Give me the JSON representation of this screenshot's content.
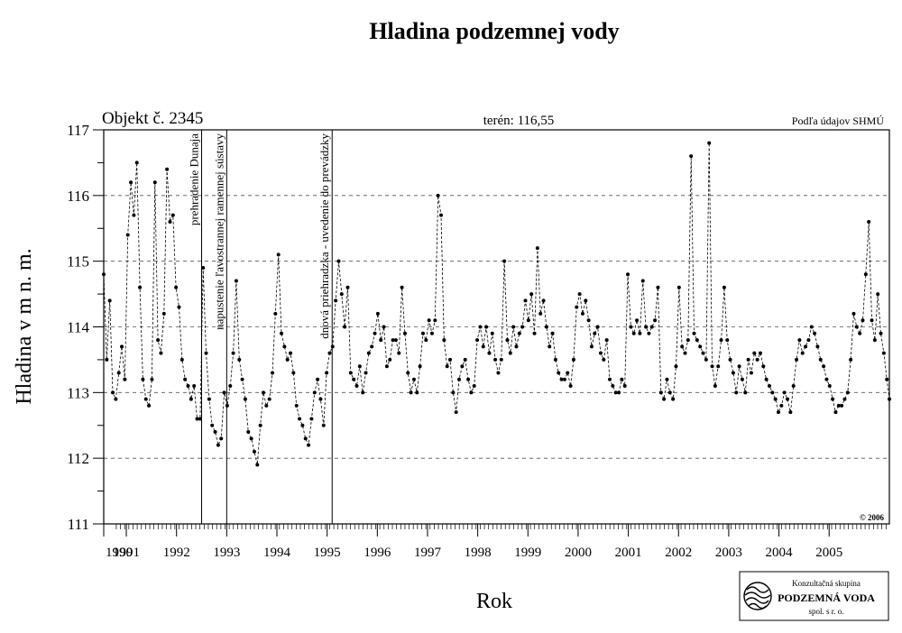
{
  "chart_data": {
    "type": "line",
    "title": "Hladina podzemnej vody",
    "object_label": "Objekt č. 2345",
    "terrain_label": "terén: 116,55",
    "source_label": "Podľa údajov SHMÚ",
    "copyright": "© 2006",
    "xlabel": "Rok",
    "ylabel": "Hladina v m n. m.",
    "xlim": [
      1990.2,
      2005.85
    ],
    "ylim": [
      111,
      117
    ],
    "y_ticks": [
      "111",
      "112",
      "113",
      "114",
      "115",
      "116",
      "117"
    ],
    "x_tick_labels": [
      {
        "x": 1990.2,
        "label": "1990"
      },
      {
        "x": 1990.65,
        "label": "1991"
      },
      {
        "x": 1991.65,
        "label": "1992"
      },
      {
        "x": 1992.65,
        "label": "1993"
      },
      {
        "x": 1993.65,
        "label": "1994"
      },
      {
        "x": 1994.65,
        "label": "1995"
      },
      {
        "x": 1995.65,
        "label": "1996"
      },
      {
        "x": 1996.65,
        "label": "1997"
      },
      {
        "x": 1997.65,
        "label": "1998"
      },
      {
        "x": 1998.65,
        "label": "1999"
      },
      {
        "x": 1999.65,
        "label": "2000"
      },
      {
        "x": 2000.65,
        "label": "2001"
      },
      {
        "x": 2001.65,
        "label": "2002"
      },
      {
        "x": 2002.65,
        "label": "2003"
      },
      {
        "x": 2003.65,
        "label": "2004"
      },
      {
        "x": 2004.65,
        "label": "2005"
      }
    ],
    "grid": "horizontal dashed",
    "event_lines": [
      {
        "x": 1992.15,
        "label": "prehradenie Dunaja"
      },
      {
        "x": 1992.65,
        "label": "napustenie ľavostrannej ramennej sústavy"
      },
      {
        "x": 1994.75,
        "label": "dnová priehradzka - uvedenie do prevádzky"
      }
    ],
    "series": [
      {
        "x": [
          1990.2,
          1990.26,
          1990.32,
          1990.38,
          1990.44,
          1990.5,
          1990.56,
          1990.62,
          1990.68,
          1990.74,
          1990.8,
          1990.86,
          1990.92,
          1990.98,
          1991.04,
          1991.1,
          1991.16,
          1991.22,
          1991.28,
          1991.34,
          1991.4,
          1991.46,
          1991.52,
          1991.58,
          1991.64,
          1991.7,
          1991.76,
          1991.82,
          1991.88,
          1991.94,
          1992.0,
          1992.06,
          1992.12,
          1992.18,
          1992.24,
          1992.3,
          1992.36,
          1992.42,
          1992.48,
          1992.54,
          1992.6,
          1992.66,
          1992.72,
          1992.78,
          1992.84,
          1992.9,
          1992.96,
          1993.02,
          1993.08,
          1993.14,
          1993.2,
          1993.26,
          1993.32,
          1993.38,
          1993.44,
          1993.5,
          1993.56,
          1993.62,
          1993.68,
          1993.74,
          1993.8,
          1993.86,
          1993.92,
          1993.98,
          1994.04,
          1994.1,
          1994.16,
          1994.22,
          1994.28,
          1994.34,
          1994.4,
          1994.46,
          1994.52,
          1994.58,
          1994.64,
          1994.7,
          1994.76,
          1994.82,
          1994.88,
          1994.94,
          1995.0,
          1995.06,
          1995.12,
          1995.18,
          1995.24,
          1995.3,
          1995.36,
          1995.42,
          1995.48,
          1995.54,
          1995.6,
          1995.66,
          1995.72,
          1995.78,
          1995.84,
          1995.9,
          1995.96,
          1996.02,
          1996.08,
          1996.14,
          1996.2,
          1996.26,
          1996.32,
          1996.38,
          1996.44,
          1996.5,
          1996.56,
          1996.62,
          1996.68,
          1996.74,
          1996.8,
          1996.86,
          1996.92,
          1996.98,
          1997.04,
          1997.1,
          1997.16,
          1997.22,
          1997.28,
          1997.34,
          1997.4,
          1997.46,
          1997.52,
          1997.58,
          1997.64,
          1997.7,
          1997.76,
          1997.82,
          1997.88,
          1997.94,
          1998.0,
          1998.06,
          1998.12,
          1998.18,
          1998.24,
          1998.3,
          1998.36,
          1998.42,
          1998.48,
          1998.54,
          1998.6,
          1998.66,
          1998.72,
          1998.78,
          1998.84,
          1998.9,
          1998.96,
          1999.02,
          1999.08,
          1999.14,
          1999.2,
          1999.26,
          1999.32,
          1999.38,
          1999.44,
          1999.5,
          1999.56,
          1999.62,
          1999.68,
          1999.74,
          1999.8,
          1999.86,
          1999.92,
          1999.98,
          2000.04,
          2000.1,
          2000.16,
          2000.22,
          2000.28,
          2000.34,
          2000.4,
          2000.46,
          2000.52,
          2000.58,
          2000.64,
          2000.7,
          2000.76,
          2000.82,
          2000.88,
          2000.94,
          2001.0,
          2001.06,
          2001.12,
          2001.18,
          2001.24,
          2001.3,
          2001.36,
          2001.42,
          2001.48,
          2001.54,
          2001.6,
          2001.66,
          2001.72,
          2001.78,
          2001.84,
          2001.9,
          2001.96,
          2002.02,
          2002.08,
          2002.14,
          2002.2,
          2002.26,
          2002.32,
          2002.38,
          2002.44,
          2002.5,
          2002.56,
          2002.62,
          2002.68,
          2002.74,
          2002.8,
          2002.86,
          2002.92,
          2002.98,
          2003.04,
          2003.1,
          2003.16,
          2003.22,
          2003.28,
          2003.34,
          2003.4,
          2003.46,
          2003.52,
          2003.58,
          2003.64,
          2003.7,
          2003.76,
          2003.82,
          2003.88,
          2003.94,
          2004.0,
          2004.06,
          2004.12,
          2004.18,
          2004.24,
          2004.3,
          2004.36,
          2004.42,
          2004.48,
          2004.54,
          2004.6,
          2004.66,
          2004.72,
          2004.78,
          2004.84,
          2004.9,
          2004.96,
          2005.02,
          2005.08,
          2005.14,
          2005.2,
          2005.26,
          2005.32,
          2005.38,
          2005.44,
          2005.5,
          2005.56,
          2005.62,
          2005.68,
          2005.74,
          2005.8,
          2005.85
        ],
        "y": [
          114.8,
          113.5,
          114.4,
          113.0,
          112.9,
          113.3,
          113.7,
          113.2,
          115.4,
          116.2,
          115.7,
          116.5,
          114.6,
          113.2,
          112.9,
          112.8,
          113.2,
          116.2,
          113.8,
          113.6,
          114.2,
          116.4,
          115.6,
          115.7,
          114.6,
          114.3,
          113.5,
          113.2,
          113.1,
          112.9,
          113.1,
          112.6,
          112.6,
          114.9,
          113.6,
          112.9,
          112.5,
          112.4,
          112.2,
          112.3,
          113.0,
          112.8,
          113.1,
          113.6,
          114.7,
          113.5,
          113.2,
          112.9,
          112.4,
          112.3,
          112.1,
          111.9,
          112.5,
          113.0,
          112.8,
          112.9,
          113.3,
          114.2,
          115.1,
          113.9,
          113.7,
          113.5,
          113.6,
          113.3,
          112.8,
          112.6,
          112.5,
          112.3,
          112.2,
          112.6,
          113.0,
          113.2,
          112.9,
          112.5,
          113.3,
          113.6,
          113.7,
          114.4,
          115.0,
          114.5,
          114.0,
          114.6,
          113.3,
          113.2,
          113.1,
          113.4,
          113.0,
          113.3,
          113.6,
          113.7,
          113.9,
          114.2,
          113.8,
          114.0,
          113.4,
          113.5,
          113.8,
          113.8,
          113.6,
          114.6,
          113.9,
          113.3,
          113.0,
          113.2,
          113.0,
          113.4,
          113.9,
          113.8,
          114.1,
          113.9,
          114.1,
          116.0,
          115.7,
          113.8,
          113.4,
          113.5,
          113.0,
          112.7,
          113.2,
          113.4,
          113.5,
          113.2,
          113.0,
          113.1,
          113.8,
          114.0,
          113.7,
          114.0,
          113.6,
          113.9,
          113.5,
          113.3,
          113.5,
          115.0,
          113.8,
          113.6,
          114.0,
          113.7,
          113.9,
          114.0,
          114.4,
          114.1,
          114.5,
          113.9,
          115.2,
          114.2,
          114.4,
          114.0,
          113.7,
          113.9,
          113.5,
          113.3,
          113.2,
          113.2,
          113.3,
          113.1,
          113.5,
          114.3,
          114.5,
          114.2,
          114.4,
          114.1,
          113.7,
          113.9,
          114.0,
          113.6,
          113.5,
          113.8,
          113.2,
          113.1,
          113.0,
          113.0,
          113.2,
          113.1,
          114.8,
          114.0,
          113.9,
          114.1,
          113.9,
          114.7,
          114.0,
          113.9,
          114.0,
          114.1,
          114.6,
          113.0,
          112.9,
          113.2,
          113.0,
          112.9,
          113.4,
          114.6,
          113.7,
          113.6,
          113.8,
          116.6,
          113.9,
          113.8,
          113.7,
          113.6,
          113.5,
          116.8,
          113.4,
          113.1,
          113.4,
          113.8,
          114.6,
          113.8,
          113.5,
          113.3,
          113.0,
          113.4,
          113.2,
          113.0,
          113.5,
          113.3,
          113.6,
          113.5,
          113.6,
          113.4,
          113.2,
          113.1,
          113.0,
          112.9,
          112.7,
          112.8,
          113.0,
          112.9,
          112.7,
          113.1,
          113.5,
          113.8,
          113.6,
          113.7,
          113.8,
          114.0,
          113.9,
          113.7,
          113.5,
          113.4,
          113.2,
          113.1,
          112.9,
          112.7,
          112.8,
          112.8,
          112.9,
          113.0,
          113.5,
          114.2,
          114.0,
          113.9,
          114.1,
          114.8,
          115.6,
          114.1,
          113.8,
          114.5,
          113.9,
          113.6,
          113.2,
          112.9
        ]
      }
    ]
  },
  "logo": {
    "line1": "Konzultačná skupina",
    "line2": "PODZEMNÁ VODA",
    "line3": "spol. s r. o."
  }
}
